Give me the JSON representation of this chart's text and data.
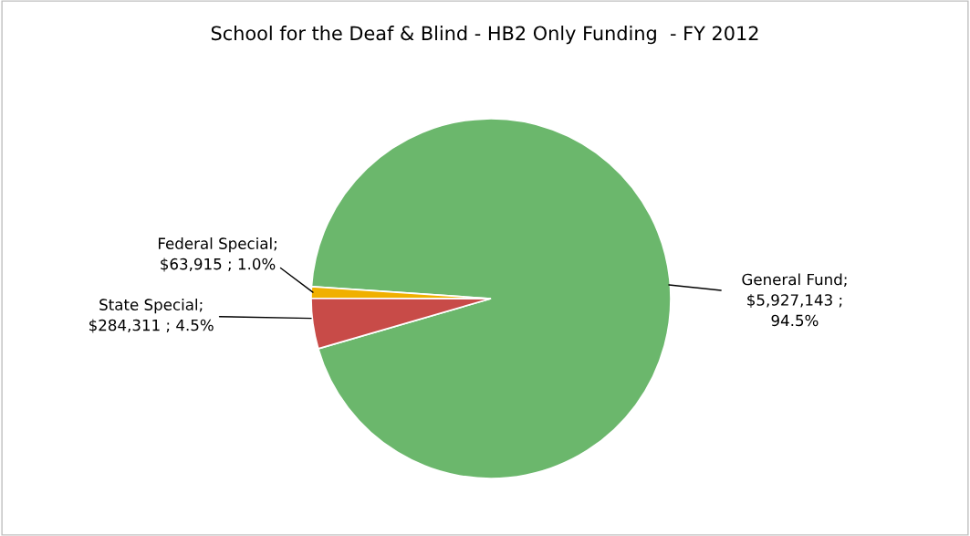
{
  "chart_data": {
    "type": "pie",
    "title": "School for the Deaf & Blind - HB2 Only Funding  - FY 2012",
    "categories": [
      "General Fund",
      "State Special",
      "Federal Special"
    ],
    "values": [
      5927143,
      284311,
      63915
    ],
    "value_labels": [
      ";\n$5,927,143 ;\n94.5%",
      ";\n$284,311 ; 4.5%",
      ";\n$63,915 ; 1.0%"
    ],
    "colors": [
      "#6bb76c",
      "#c84b48",
      "#f0b000"
    ],
    "legend": false
  }
}
